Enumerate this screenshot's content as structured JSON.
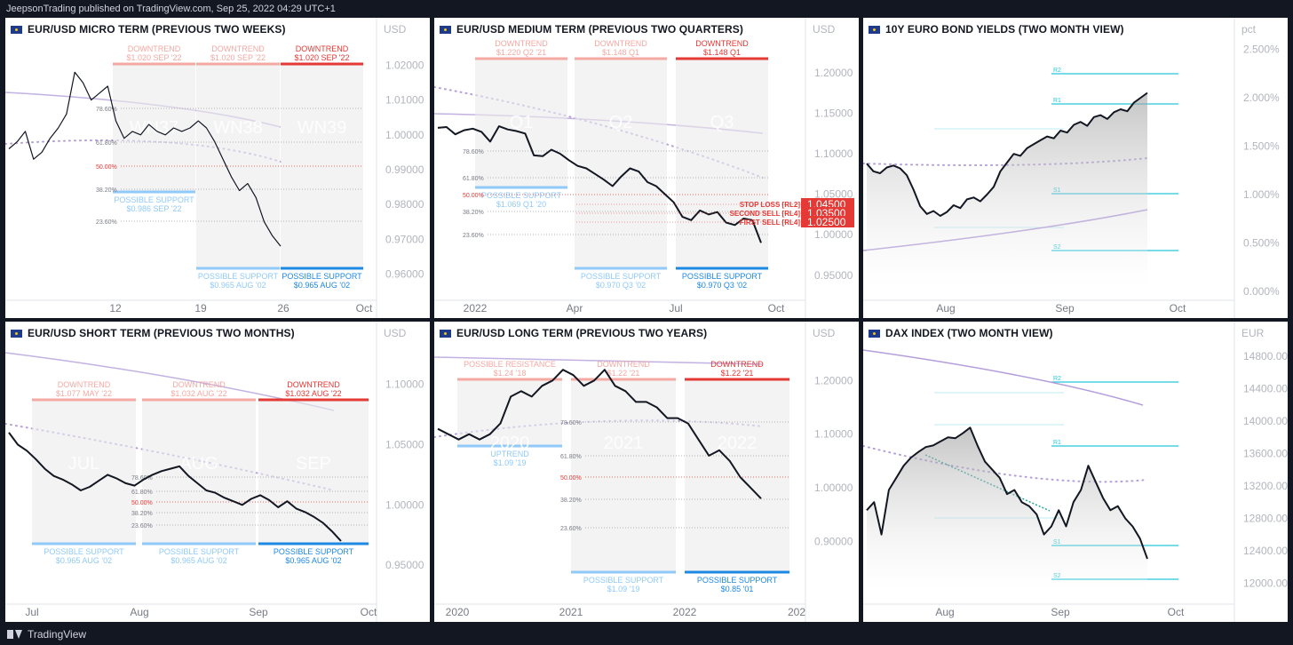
{
  "header": {
    "publisher": "JeepsonTrading published on TradingView.com, Sep 25, 2022 04:29 UTC+1"
  },
  "footer": {
    "brand": "TradingView"
  },
  "colors": {
    "background": "#131722",
    "line": "#131722",
    "red": "#e53935",
    "red_light": "#f4a9a3",
    "blue": "#1e88e5",
    "blue_light": "#90caf9",
    "purple": "#b39ddb",
    "teal": "#26c6da"
  },
  "chart_data": [
    {
      "id": "p1",
      "type": "line",
      "title": "EUR/USD MICRO TERM (PREVIOUS TWO WEEKS)",
      "unit": "USD",
      "x_ticks": [
        "12",
        "19",
        "26",
        "Oct"
      ],
      "y_ticks": [
        "1.02000",
        "1.01000",
        "1.00000",
        "0.99000",
        "0.98000",
        "0.97000",
        "0.96000"
      ],
      "ylim": [
        0.955,
        1.026
      ],
      "series": [
        {
          "values": [
            0.996,
            0.998,
            1.001,
            0.993,
            0.995,
            0.999,
            1.002,
            1.006,
            1.018,
            1.015,
            1.01,
            1.012,
            1.014,
            1.004,
            0.999,
            1.001,
            1.0,
            1.003,
            1.001,
            1.0,
            1.002,
            1.001,
            1.002,
            1.004,
            1.002,
            0.998,
            0.993,
            0.988,
            0.984,
            0.986,
            0.982,
            0.975,
            0.971,
            0.968
          ]
        }
      ],
      "fib_levels": [
        "78.60%",
        "61.80%",
        "50.00%",
        "38.20%",
        "23.60%"
      ],
      "boxes": [
        {
          "top_label": "DOWNTREND",
          "top_sub": "$1.020 SEP '22",
          "bottom_label": "POSSIBLE SUPPORT",
          "bottom_sub": "$0.986 SEP '22",
          "watermark": "WN37"
        },
        {
          "top_label": "DOWNTREND",
          "top_sub": "$1.020 SEP '22",
          "bottom_label": "POSSIBLE SUPPORT",
          "bottom_sub": "$0.965 AUG '02",
          "watermark": "WN38"
        },
        {
          "top_label": "DOWNTREND",
          "top_sub": "$1.020 SEP '22",
          "bottom_label": "POSSIBLE SUPPORT",
          "bottom_sub": "$0.965 AUG '02",
          "watermark": "WN39"
        }
      ]
    },
    {
      "id": "p2",
      "type": "line",
      "title": "EUR/USD MEDIUM TERM (PREVIOUS TWO QUARTERS)",
      "unit": "USD",
      "x_ticks": [
        "2022",
        "Apr",
        "Jul",
        "Oct"
      ],
      "y_ticks": [
        "1.20000",
        "1.15000",
        "1.10000",
        "1.05000",
        "1.00000",
        "0.95000"
      ],
      "ylim": [
        0.93,
        1.235
      ],
      "series": [
        {
          "values": [
            1.132,
            1.133,
            1.124,
            1.129,
            1.131,
            1.127,
            1.115,
            1.134,
            1.13,
            1.128,
            1.125,
            1.098,
            1.097,
            1.105,
            1.1,
            1.092,
            1.085,
            1.082,
            1.075,
            1.068,
            1.06,
            1.072,
            1.082,
            1.078,
            1.065,
            1.06,
            1.05,
            1.04,
            1.022,
            1.018,
            1.03,
            1.025,
            1.028,
            1.015,
            1.012,
            1.02,
            1.018,
            0.99
          ]
        }
      ],
      "fib_levels": [
        "78.60%",
        "61.80%",
        "50.00%",
        "38.20%",
        "23.60%"
      ],
      "sell_levels": [
        {
          "label": "STOP LOSS [RL2]",
          "value": "1.04500"
        },
        {
          "label": "SECOND SELL [RL4]",
          "value": "1.03500"
        },
        {
          "label": "FIRST SELL [RL4]",
          "value": "1.02500"
        }
      ],
      "boxes": [
        {
          "top_label": "DOWNTREND",
          "top_sub": "$1.220 Q2 '21",
          "bottom_label": "POSSIBLE SUPPORT",
          "bottom_sub": "$1.069 Q1 '20",
          "watermark": "Q1"
        },
        {
          "top_label": "DOWNTREND",
          "top_sub": "$1.148 Q1",
          "bottom_label": "POSSIBLE SUPPORT",
          "bottom_sub": "$0.970 Q3 '02",
          "watermark": "Q2"
        },
        {
          "top_label": "DOWNTREND",
          "top_sub": "$1.148 Q1",
          "bottom_label": "POSSIBLE SUPPORT",
          "bottom_sub": "$0.970 Q3 '02",
          "watermark": "Q3"
        }
      ]
    },
    {
      "id": "p3",
      "type": "area",
      "title": "10Y EURO BOND YIELDS (TWO MONTH VIEW)",
      "unit": "pct",
      "x_ticks": [
        "Aug",
        "Sep",
        "Oct"
      ],
      "y_ticks": [
        "2.500%",
        "2.000%",
        "1.500%",
        "1.000%",
        "0.500%",
        "0.000%"
      ],
      "ylim": [
        0,
        2.55
      ],
      "series": [
        {
          "values": [
            1.32,
            1.24,
            1.22,
            1.28,
            1.3,
            1.27,
            1.2,
            1.05,
            0.88,
            0.8,
            0.83,
            0.78,
            0.82,
            0.89,
            0.86,
            0.95,
            0.97,
            0.93,
            1.0,
            1.08,
            1.24,
            1.33,
            1.42,
            1.4,
            1.48,
            1.52,
            1.56,
            1.6,
            1.58,
            1.66,
            1.64,
            1.72,
            1.75,
            1.71,
            1.8,
            1.82,
            1.78,
            1.85,
            1.88,
            1.86,
            1.95,
            2.0,
            2.05
          ]
        }
      ],
      "levels": [
        "R2",
        "R1",
        "S1",
        "S2"
      ]
    },
    {
      "id": "p4",
      "type": "line",
      "title": "EUR/USD SHORT TERM (PREVIOUS TWO MONTHS)",
      "unit": "USD",
      "x_ticks": [
        "Jul",
        "Aug",
        "Sep",
        "Oct"
      ],
      "y_ticks": [
        "1.10000",
        "1.05000",
        "1.00000",
        "0.95000"
      ],
      "ylim": [
        0.925,
        1.13
      ],
      "series": [
        {
          "values": [
            1.06,
            1.05,
            1.045,
            1.038,
            1.03,
            1.024,
            1.021,
            1.017,
            1.012,
            1.015,
            1.02,
            1.025,
            1.022,
            1.018,
            1.016,
            1.021,
            1.025,
            1.028,
            1.03,
            1.032,
            1.024,
            1.018,
            1.012,
            1.01,
            1.006,
            1.003,
            1.0,
            1.005,
            1.008,
            1.004,
            0.998,
            1.003,
            0.997,
            0.994,
            0.99,
            0.985,
            0.978,
            0.97
          ]
        }
      ],
      "fib_levels": [
        "78.60%",
        "61.80%",
        "50.00%",
        "38.20%",
        "23.60%"
      ],
      "boxes": [
        {
          "top_label": "DOWNTREND",
          "top_sub": "$1.077 MAY '22",
          "bottom_label": "POSSIBLE SUPPORT",
          "bottom_sub": "$0.965 AUG '02",
          "watermark": "JUL"
        },
        {
          "top_label": "DOWNTREND",
          "top_sub": "$1.032 AUG '22",
          "bottom_label": "POSSIBLE SUPPORT",
          "bottom_sub": "$0.965 AUG '02",
          "watermark": "AUG"
        },
        {
          "top_label": "DOWNTREND",
          "top_sub": "$1.032 AUG '22",
          "bottom_label": "POSSIBLE SUPPORT",
          "bottom_sub": "$0.965 AUG '02",
          "watermark": "SEP"
        }
      ]
    },
    {
      "id": "p5",
      "type": "line",
      "title": "EUR/USD LONG TERM (PREVIOUS TWO YEARS)",
      "unit": "USD",
      "x_ticks": [
        "2020",
        "2021",
        "2022",
        "202"
      ],
      "y_ticks": [
        "1.20000",
        "1.10000",
        "1.00000",
        "0.90000"
      ],
      "ylim": [
        0.8,
        1.26
      ],
      "series": [
        {
          "values": [
            1.11,
            1.1,
            1.09,
            1.1,
            1.09,
            1.1,
            1.12,
            1.17,
            1.18,
            1.17,
            1.19,
            1.2,
            1.22,
            1.21,
            1.19,
            1.2,
            1.22,
            1.19,
            1.18,
            1.16,
            1.16,
            1.15,
            1.13,
            1.13,
            1.12,
            1.09,
            1.06,
            1.07,
            1.05,
            1.02,
            1.0,
            0.98
          ]
        }
      ],
      "fib_levels": [
        "78.60%",
        "61.80%",
        "50.00%",
        "38.20%",
        "23.60%"
      ],
      "boxes": [
        {
          "top_label": "POSSIBLE RESISTANCE",
          "top_sub": "$1.24 '18",
          "bottom_label": "UPTREND",
          "bottom_sub": "$1.09 '19",
          "watermark": "2020"
        },
        {
          "top_label": "DOWNTREND",
          "top_sub": "$1.22 '21",
          "bottom_label": "POSSIBLE SUPPORT",
          "bottom_sub": "$1.09 '19",
          "watermark": "2021"
        },
        {
          "top_label": "DOWNTREND",
          "top_sub": "$1.22 '21",
          "bottom_label": "POSSIBLE SUPPORT",
          "bottom_sub": "$0.85 '01",
          "watermark": "2022"
        }
      ]
    },
    {
      "id": "p6",
      "type": "area",
      "title": "DAX INDEX (TWO MONTH VIEW)",
      "unit": "EUR",
      "x_ticks": [
        "Aug",
        "Sep",
        "Oct"
      ],
      "y_ticks": [
        "14800.00",
        "14400.00",
        "14000.00",
        "13600.00",
        "13200.00",
        "12800.00",
        "12400.00",
        "12000.00"
      ],
      "ylim": [
        11850,
        14900
      ],
      "series": [
        {
          "values": [
            12900,
            13000,
            12600,
            13150,
            13300,
            13450,
            13550,
            13620,
            13680,
            13700,
            13750,
            13800,
            13790,
            13850,
            13920,
            13700,
            13500,
            13400,
            13300,
            13100,
            13150,
            13000,
            12950,
            12850,
            12600,
            12700,
            12900,
            12700,
            13000,
            13150,
            13450,
            13250,
            13050,
            12900,
            12950,
            12800,
            12700,
            12550,
            12300
          ]
        }
      ],
      "levels": [
        "R2",
        "R1",
        "S1",
        "S2"
      ]
    }
  ]
}
